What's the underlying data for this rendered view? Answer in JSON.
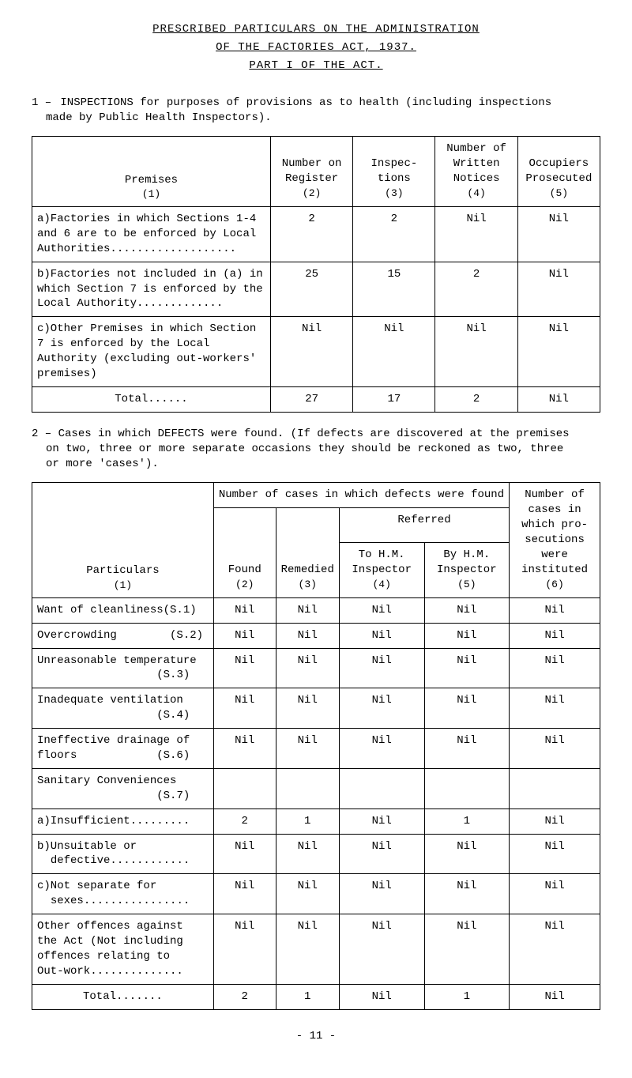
{
  "heading": {
    "line1": "PRESCRIBED PARTICULARS ON THE ADMINISTRATION",
    "line2": "OF THE FACTORIES ACT, 1937.",
    "line3": "PART I OF THE ACT."
  },
  "section1": {
    "marker": "1 –",
    "text_a": "INSPECTIONS for purposes of provisions as to health (including inspections",
    "text_b": "made by Public Health Inspectors)."
  },
  "table1": {
    "head": {
      "premises": "Premises",
      "premises_idx": "(1)",
      "number_on": "Number on Register",
      "number_on_idx": "(2)",
      "inspections": "Inspec- tions",
      "inspections_idx": "(3)",
      "written": "Number of Written Notices",
      "written_idx": "(4)",
      "occupiers": "Occupiers Prosecuted",
      "occupiers_idx": "(5)"
    },
    "rows": [
      {
        "label": "a)Factories in which Sections 1-4 and 6 are to be enforced by Local Authorities...................",
        "c2": "2",
        "c3": "2",
        "c4": "Nil",
        "c5": "Nil"
      },
      {
        "label": "b)Factories not included in (a) in which Section 7 is enforced by the Local Authority.............",
        "c2": "25",
        "c3": "15",
        "c4": "2",
        "c5": "Nil"
      },
      {
        "label": "c)Other Premises in which Section 7 is enforced by the Local Authority (excluding out-workers' premises)",
        "c2": "Nil",
        "c3": "Nil",
        "c4": "Nil",
        "c5": "Nil"
      },
      {
        "label": "Total......",
        "c2": "27",
        "c3": "17",
        "c4": "2",
        "c5": "Nil"
      }
    ]
  },
  "section2": {
    "marker": "2 –",
    "text_a": "Cases in which DEFECTS were found. (If defects are discovered at the premises",
    "text_b": "on two, three or more separate occasions they should be reckoned as two, three",
    "text_c": "or more 'cases')."
  },
  "table2": {
    "head": {
      "particulars": "Particulars",
      "particulars_idx": "(1)",
      "cases_header": "Number of cases in which defects were found",
      "found": "Found",
      "found_idx": "(2)",
      "remedied": "Remedied",
      "remedied_idx": "(3)",
      "referred": "Referred",
      "to_hm": "To H.M. Inspector",
      "to_hm_idx": "(4)",
      "by_hm": "By H.M. Inspector",
      "by_hm_idx": "(5)",
      "prosec": "Number of cases in which pro- secutions were instituted",
      "prosec_idx": "(6)"
    },
    "rows": [
      {
        "label": "Want of cleanliness(S.1)",
        "c2": "Nil",
        "c3": "Nil",
        "c4": "Nil",
        "c5": "Nil",
        "c6": "Nil"
      },
      {
        "label": "Overcrowding        (S.2)",
        "c2": "Nil",
        "c3": "Nil",
        "c4": "Nil",
        "c5": "Nil",
        "c6": "Nil"
      },
      {
        "label": "Unreasonable temperature\n                  (S.3)",
        "c2": "Nil",
        "c3": "Nil",
        "c4": "Nil",
        "c5": "Nil",
        "c6": "Nil"
      },
      {
        "label": "Inadequate ventilation\n                  (S.4)",
        "c2": "Nil",
        "c3": "Nil",
        "c4": "Nil",
        "c5": "Nil",
        "c6": "Nil"
      },
      {
        "label": "Ineffective drainage of\nfloors            (S.6)",
        "c2": "Nil",
        "c3": "Nil",
        "c4": "Nil",
        "c5": "Nil",
        "c6": "Nil"
      },
      {
        "label": "Sanitary Conveniences\n                  (S.7)",
        "c2": "",
        "c3": "",
        "c4": "",
        "c5": "",
        "c6": "",
        "noborder": true
      },
      {
        "label": "a)Insufficient.........",
        "c2": "2",
        "c3": "1",
        "c4": "Nil",
        "c5": "1",
        "c6": "Nil"
      },
      {
        "label": "b)Unsuitable or\n  defective............",
        "c2": "Nil",
        "c3": "Nil",
        "c4": "Nil",
        "c5": "Nil",
        "c6": "Nil"
      },
      {
        "label": "c)Not separate for\n  sexes................",
        "c2": "Nil",
        "c3": "Nil",
        "c4": "Nil",
        "c5": "Nil",
        "c6": "Nil"
      },
      {
        "label": "Other offences against\nthe Act (Not including\noffences relating to\nOut-work..............",
        "c2": "Nil",
        "c3": "Nil",
        "c4": "Nil",
        "c5": "Nil",
        "c6": "Nil"
      }
    ],
    "total": {
      "label": "Total.......",
      "c2": "2",
      "c3": "1",
      "c4": "Nil",
      "c5": "1",
      "c6": "Nil"
    }
  },
  "footer": {
    "page": "- 11 -"
  }
}
